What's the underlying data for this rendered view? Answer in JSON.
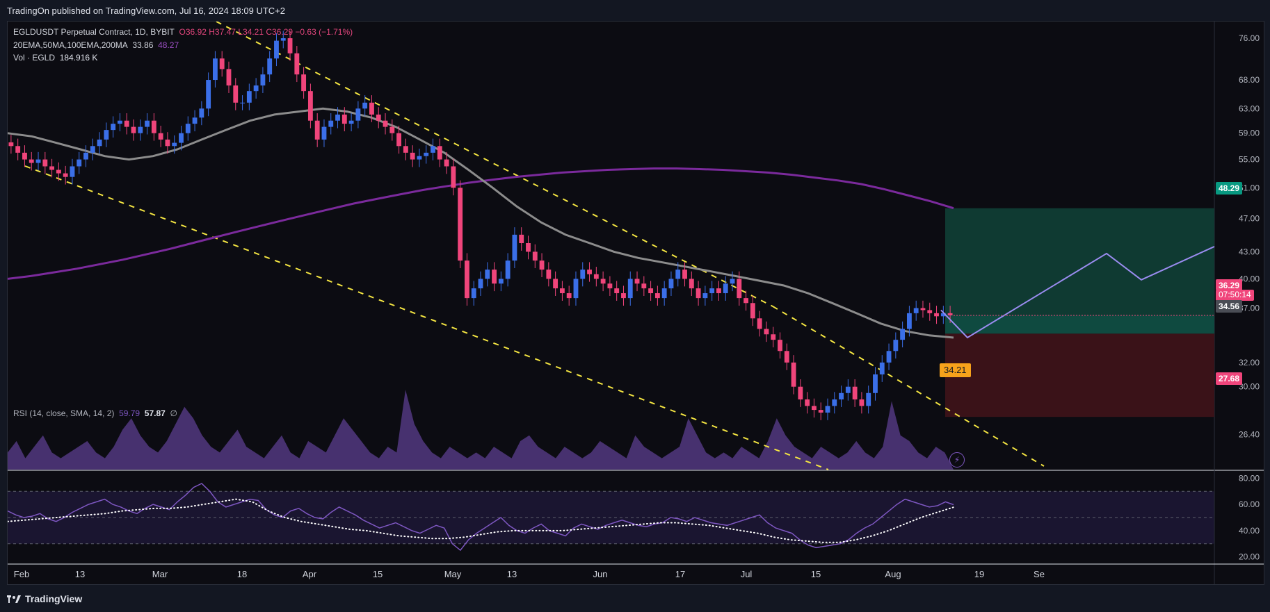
{
  "header": {
    "publish_text": "TradingOn published on TradingView.com, Jul 16, 2024 18:09 UTC+2"
  },
  "legend": {
    "symbol": "EGLDUSDT Perpetual Contract, 1D, BYBIT",
    "open": "O36.92",
    "high": "H37.47",
    "low": "L34.21",
    "close": "C36.29",
    "change": "−0.63 (−1.71%)",
    "ma_label": "20EMA,50MA,100EMA,200MA",
    "ma_val1": "33.86",
    "ma_val2": "48.27",
    "vol_label": "Vol · EGLD",
    "vol_value": "184.916 K",
    "rsi_label": "RSI (14, close, SMA, 14, 2)",
    "rsi_val1": "59.79",
    "rsi_val2": "57.87",
    "rsi_val3": "∅"
  },
  "price_tags": {
    "target": "48.29",
    "last": "36.29",
    "countdown": "07:50:14",
    "entry": "34.56",
    "stop": "27.68",
    "low_marker": "34.21"
  },
  "footer": {
    "brand": "TradingView"
  },
  "colors": {
    "up": "#3b6fe8",
    "down": "#f0457b",
    "ma200": "#7b2a9c",
    "ma_gray": "#8c8c8c",
    "trendline": "#f5e642",
    "projection": "#9a8cf0",
    "target_zone": "#0f3a32",
    "stop_zone": "#3a1218",
    "rsi_line": "#7e57c2"
  },
  "chart_data": {
    "type": "candlestick",
    "title": "EGLDUSDT Perpetual Contract, 1D, BYBIT",
    "price_axis": {
      "ticks": [
        "76.00",
        "68.00",
        "63.00",
        "59.00",
        "55.00",
        "51.00",
        "47.00",
        "43.00",
        "40.00",
        "37.00",
        "32.00",
        "30.00",
        "26.40"
      ],
      "range": [
        24.5,
        78
      ],
      "scale": "log"
    },
    "rsi_axis": {
      "ticks": [
        "80.00",
        "60.00",
        "40.00",
        "20.00"
      ],
      "range": [
        15,
        85
      ]
    },
    "time_axis": {
      "ticks": [
        "Feb",
        "13",
        "Mar",
        "18",
        "Apr",
        "15",
        "May",
        "13",
        "Jun",
        "17",
        "Jul",
        "15",
        "Aug",
        "19",
        "Se"
      ]
    },
    "closes": [
      57,
      56,
      55,
      54.5,
      55,
      54,
      53.5,
      53,
      52.5,
      54,
      55,
      56,
      57,
      58,
      59.5,
      60.5,
      61,
      60,
      59,
      60,
      61,
      59,
      58,
      57,
      57.5,
      59,
      60.5,
      61.5,
      63,
      68,
      72,
      70,
      67,
      64,
      64,
      66,
      67,
      69,
      72,
      75.5,
      76,
      73,
      69,
      66,
      61,
      58,
      60,
      61,
      62,
      60.5,
      61,
      63,
      64,
      62,
      61,
      60,
      59,
      57,
      56,
      55,
      55.5,
      56,
      57,
      55,
      54,
      51,
      42,
      38,
      39,
      40,
      41,
      39.5,
      40,
      42,
      45,
      44,
      43,
      42,
      41,
      40,
      39,
      38.5,
      38,
      40,
      41,
      40.5,
      40,
      39.5,
      39,
      38.5,
      38,
      40,
      39.5,
      39,
      38.5,
      38,
      39,
      40,
      41,
      40,
      39,
      38,
      38.5,
      39,
      38.5,
      39.5,
      40,
      38,
      37.5,
      36,
      35,
      34.5,
      34,
      33,
      32,
      30,
      29,
      28.5,
      28.2,
      28,
      28.5,
      29,
      29.5,
      30,
      29,
      28.5,
      29.5,
      31,
      32,
      33,
      34,
      35,
      36.5,
      37,
      36.8,
      36.5,
      36.2,
      36.5,
      36.29
    ],
    "ma200": [
      40,
      40.3,
      40.7,
      41.1,
      41.6,
      42.1,
      42.7,
      43.3,
      44,
      44.7,
      45.4,
      46.1,
      46.8,
      47.5,
      48.2,
      48.9,
      49.5,
      50.1,
      50.7,
      51.2,
      51.7,
      52.1,
      52.5,
      52.8,
      53.1,
      53.3,
      53.5,
      53.6,
      53.7,
      53.7,
      53.6,
      53.5,
      53.3,
      53.1,
      52.8,
      52.4,
      52,
      51.5,
      50.8,
      50,
      49.2,
      48.3
    ],
    "ma_gray": [
      59,
      58.5,
      57.5,
      56.5,
      55.5,
      55,
      55.5,
      56.5,
      58,
      59.5,
      61,
      62,
      62.5,
      63,
      62.5,
      61.5,
      60,
      58,
      56,
      53.5,
      51,
      48.5,
      46.5,
      45,
      44,
      43,
      42.3,
      41.8,
      41.3,
      40.8,
      40.3,
      39.8,
      39.3,
      38.5,
      37.5,
      36.5,
      35.5,
      34.8,
      34.4,
      34.2
    ],
    "rsi": [
      55,
      52,
      50,
      51,
      53,
      49,
      47,
      50,
      54,
      57,
      60,
      62,
      64,
      60,
      58,
      55,
      53,
      57,
      60,
      58,
      56,
      62,
      67,
      73,
      76,
      70,
      62,
      58,
      60,
      62,
      64,
      63,
      56,
      52,
      50,
      55,
      57,
      53,
      50,
      49,
      54,
      58,
      55,
      52,
      48,
      45,
      42,
      44,
      46,
      43,
      40,
      38,
      41,
      44,
      42,
      30,
      25,
      33,
      38,
      42,
      46,
      50,
      44,
      40,
      38,
      42,
      45,
      40,
      38,
      36,
      42,
      45,
      43,
      41,
      44,
      46,
      48,
      46,
      44,
      43,
      45,
      46,
      50,
      49,
      47,
      50,
      48,
      46,
      45,
      44,
      46,
      48,
      50,
      52,
      46,
      42,
      40,
      38,
      33,
      29,
      27,
      28,
      29,
      30,
      33,
      38,
      42,
      45,
      50,
      55,
      60,
      64,
      62,
      60,
      58,
      59,
      62,
      59.79
    ],
    "rsi_sma": [
      47,
      48,
      49,
      50,
      51,
      52,
      53,
      55,
      56,
      57,
      57,
      58,
      60,
      62,
      64,
      62,
      55,
      50,
      47,
      45,
      43,
      41,
      40,
      38,
      36,
      35,
      34,
      34,
      35,
      37,
      39,
      40,
      40,
      40,
      40,
      41,
      42,
      43,
      44,
      45,
      46,
      46,
      45,
      44,
      42,
      40,
      38,
      35,
      33,
      32,
      31,
      31,
      33,
      36,
      40,
      45,
      50,
      54,
      57.87
    ],
    "volume": [
      3,
      5,
      2,
      4,
      6,
      3,
      2,
      3,
      4,
      5,
      3,
      2,
      4,
      7,
      9,
      6,
      4,
      3,
      5,
      8,
      11,
      9,
      6,
      4,
      3,
      5,
      7,
      4,
      3,
      2,
      4,
      6,
      3,
      2,
      5,
      4,
      3,
      6,
      9,
      7,
      5,
      3,
      2,
      4,
      3,
      14,
      8,
      5,
      3,
      2,
      4,
      3,
      2,
      3,
      2,
      4,
      3,
      2,
      5,
      6,
      4,
      3,
      2,
      4,
      3,
      2,
      3,
      5,
      4,
      3,
      2,
      6,
      4,
      3,
      2,
      3,
      4,
      9,
      6,
      3,
      2,
      3,
      2,
      4,
      3,
      2,
      5,
      9,
      6,
      4,
      3,
      2,
      4,
      3,
      2,
      3,
      5,
      3,
      2,
      4,
      12,
      6,
      5,
      3,
      2,
      4,
      3
    ],
    "target_price": 48.29,
    "entry_price": 34.56,
    "stop_price": 27.68,
    "last_price": 36.29
  }
}
